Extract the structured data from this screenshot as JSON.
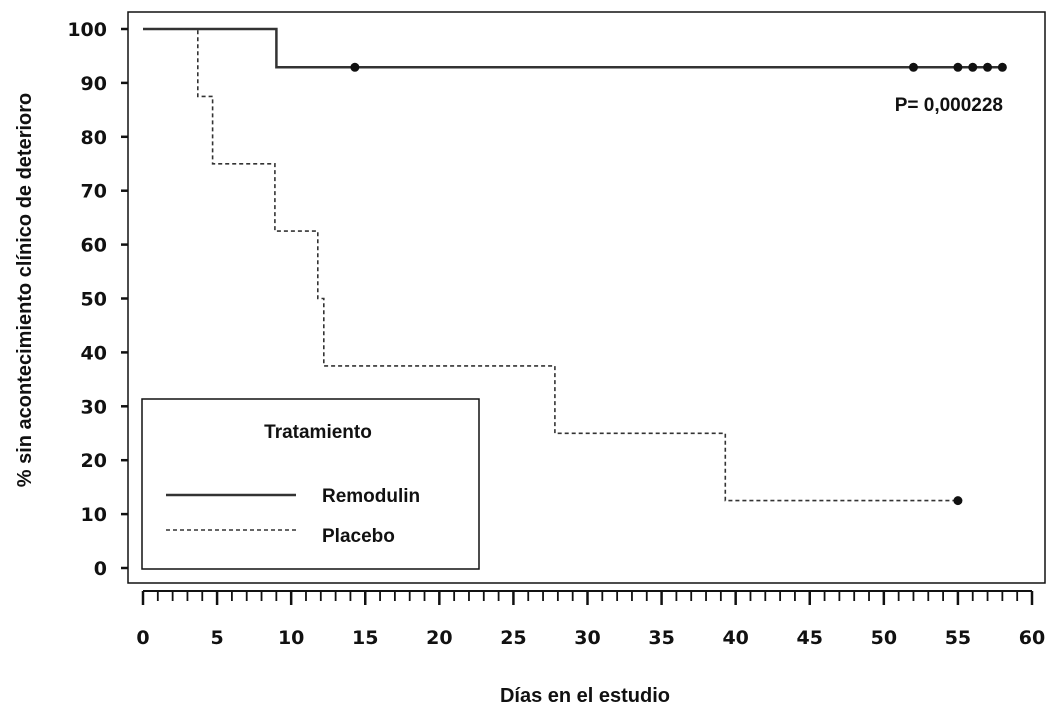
{
  "chart_data": {
    "type": "line",
    "subtype": "kaplan-meier step",
    "xlabel": "Días en el estudio",
    "ylabel": "% sin acontecimiento clínico de deterioro",
    "xlim": [
      0,
      60
    ],
    "ylim": [
      0,
      100
    ],
    "xticks": [
      0,
      5,
      10,
      15,
      20,
      25,
      30,
      35,
      40,
      45,
      50,
      55,
      60
    ],
    "yticks": [
      0,
      10,
      20,
      30,
      40,
      50,
      60,
      70,
      80,
      90,
      100
    ],
    "grid": false,
    "annotation": "P= 0,000228",
    "legend": {
      "title": "Tratamiento",
      "position": "bottom-left",
      "entries": [
        {
          "label": "Remodulin",
          "style": "solid"
        },
        {
          "label": "Placebo",
          "style": "dashed"
        }
      ]
    },
    "series": [
      {
        "name": "Remodulin",
        "style": "solid",
        "steps": [
          [
            0,
            100
          ],
          [
            9,
            100
          ],
          [
            9,
            92.9
          ],
          [
            58,
            92.9
          ]
        ],
        "censored": [
          [
            14.3,
            92.9
          ],
          [
            52,
            92.9
          ],
          [
            55,
            92.9
          ],
          [
            56,
            92.9
          ],
          [
            57,
            92.9
          ],
          [
            58,
            92.9
          ]
        ]
      },
      {
        "name": "Placebo",
        "style": "dashed",
        "steps": [
          [
            0,
            100
          ],
          [
            3.7,
            100
          ],
          [
            3.7,
            87.5
          ],
          [
            4.7,
            87.5
          ],
          [
            4.7,
            75
          ],
          [
            8.9,
            75
          ],
          [
            8.9,
            62.5
          ],
          [
            11.8,
            62.5
          ],
          [
            11.8,
            50
          ],
          [
            12.2,
            50
          ],
          [
            12.2,
            37.5
          ],
          [
            27.8,
            37.5
          ],
          [
            27.8,
            25
          ],
          [
            39.3,
            25
          ],
          [
            39.3,
            12.5
          ],
          [
            55,
            12.5
          ]
        ],
        "censored": [
          [
            55,
            12.5
          ]
        ]
      }
    ],
    "colors": {
      "line": "#333333",
      "axis": "#111111"
    }
  }
}
